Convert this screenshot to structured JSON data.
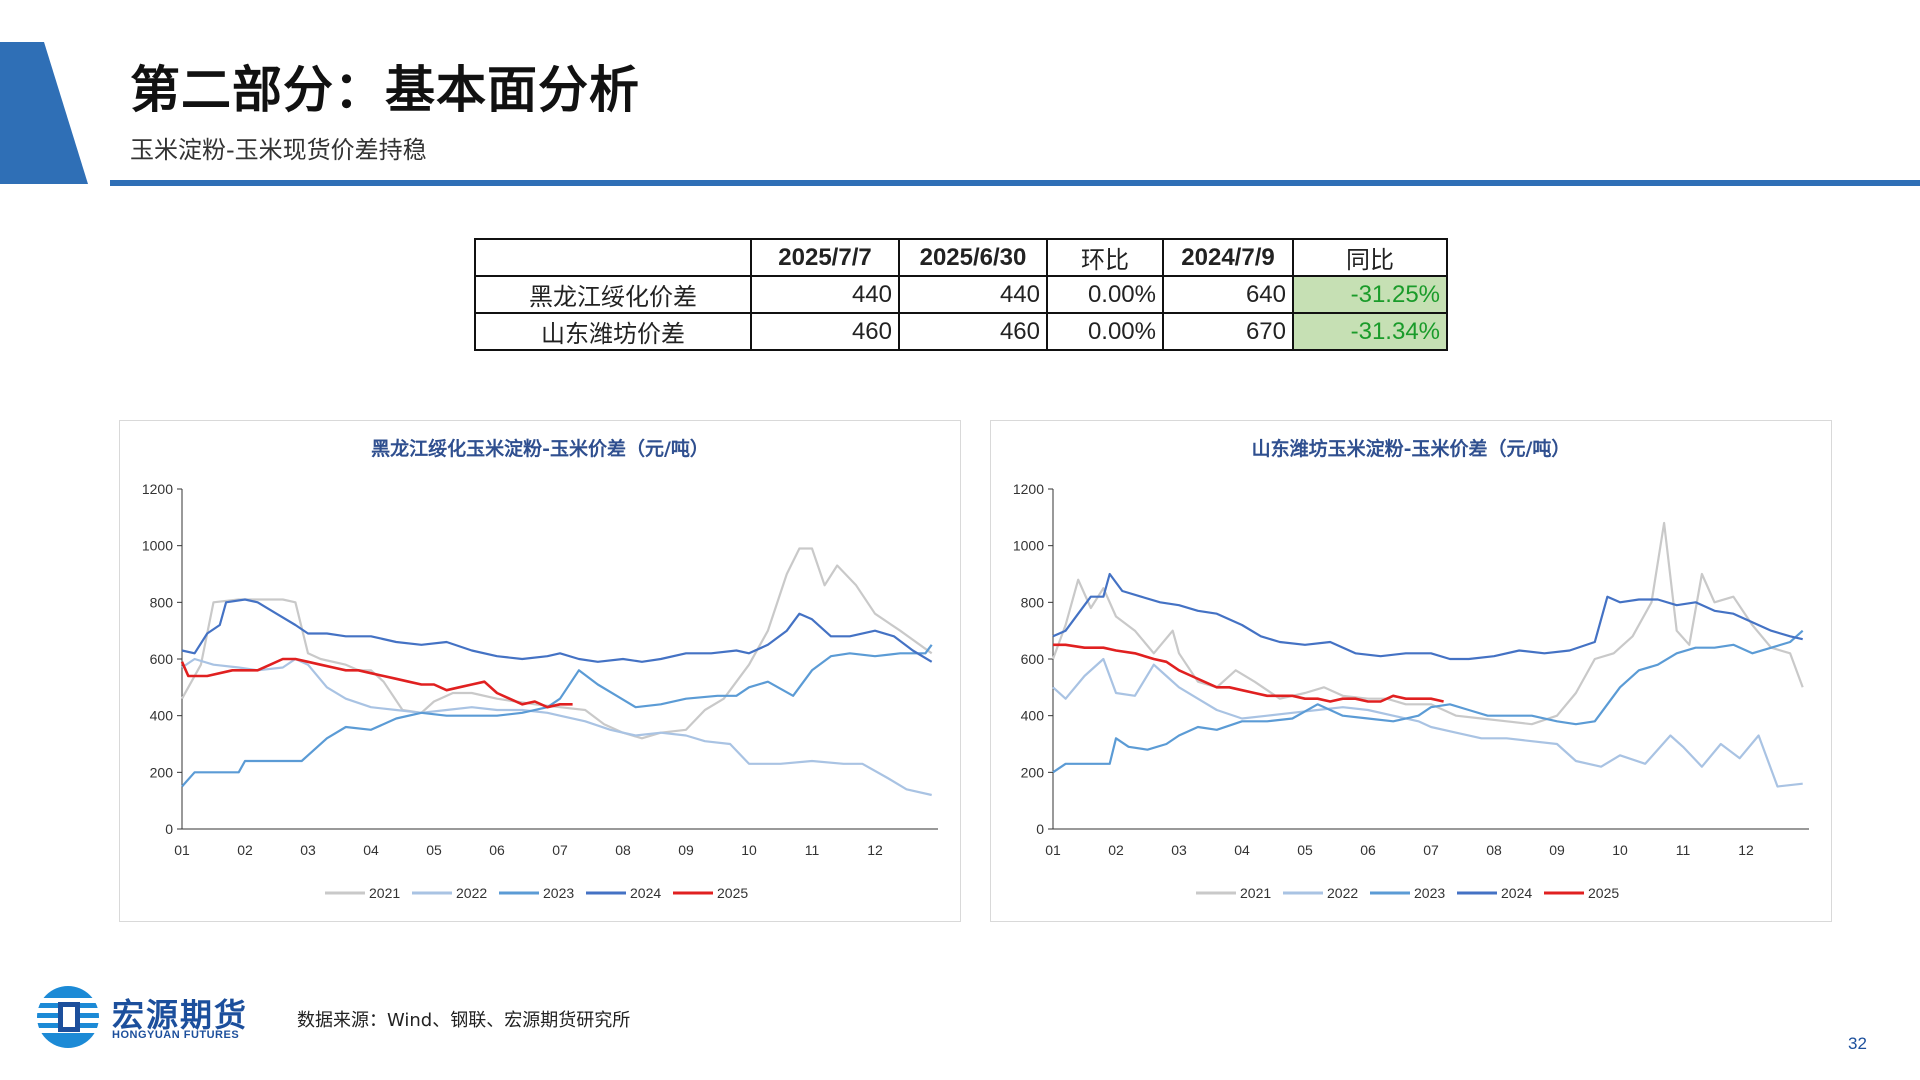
{
  "header": {
    "title": "第二部分：基本面分析",
    "subtitle": "玉米淀粉-玉米现货价差持稳"
  },
  "summary_table": {
    "columns": [
      "",
      "2025/7/7",
      "2025/6/30",
      "环比",
      "2024/7/9",
      "同比"
    ],
    "rows": [
      {
        "name": "黑龙江绥化价差",
        "v1": "440",
        "v2": "440",
        "mom": "0.00%",
        "v3": "640",
        "yoy": "-31.25%"
      },
      {
        "name": "山东潍坊价差",
        "v1": "460",
        "v2": "460",
        "mom": "0.00%",
        "v3": "670",
        "yoy": "-31.34%"
      }
    ]
  },
  "chart_data": [
    {
      "type": "line",
      "title": "黑龙江绥化玉米淀粉-玉米价差（元/吨）",
      "xlabel": "",
      "ylabel": "",
      "ylim": [
        0,
        1200
      ],
      "yticks": [
        "0",
        "200",
        "400",
        "600",
        "800",
        "1000",
        "1200"
      ],
      "xticks": [
        "01",
        "02",
        "03",
        "04",
        "05",
        "06",
        "07",
        "08",
        "09",
        "10",
        "11",
        "12"
      ],
      "legend": "bottom",
      "series": [
        {
          "name": "2021",
          "color": "#c9c9c9",
          "x": [
            1.0,
            1.3,
            1.5,
            1.9,
            2.3,
            2.6,
            2.8,
            3.0,
            3.2,
            3.6,
            3.8,
            4.0,
            4.2,
            4.5,
            4.8,
            5.0,
            5.3,
            5.6,
            6.0,
            6.3,
            6.6,
            7.0,
            7.4,
            7.7,
            8.0,
            8.3,
            8.6,
            9.0,
            9.3,
            9.6,
            10.0,
            10.3,
            10.6,
            10.8,
            11.0,
            11.2,
            11.4,
            11.7,
            12.0,
            12.4,
            12.9
          ],
          "y": [
            460,
            580,
            800,
            810,
            810,
            810,
            800,
            620,
            600,
            580,
            560,
            560,
            520,
            420,
            410,
            450,
            480,
            480,
            460,
            450,
            440,
            430,
            420,
            370,
            340,
            320,
            340,
            350,
            420,
            460,
            580,
            700,
            900,
            990,
            990,
            860,
            930,
            860,
            760,
            700,
            620
          ]
        },
        {
          "name": "2022",
          "color": "#a9c3e3",
          "x": [
            1.0,
            1.2,
            1.5,
            1.9,
            2.2,
            2.6,
            2.8,
            3.0,
            3.3,
            3.6,
            4.0,
            4.4,
            4.8,
            5.2,
            5.6,
            6.0,
            6.4,
            6.8,
            7.0,
            7.4,
            7.8,
            8.2,
            8.6,
            9.0,
            9.3,
            9.7,
            10.0,
            10.5,
            11.0,
            11.5,
            11.8,
            12.2,
            12.5,
            12.9
          ],
          "y": [
            570,
            600,
            580,
            570,
            560,
            570,
            600,
            580,
            500,
            460,
            430,
            420,
            410,
            420,
            430,
            420,
            420,
            410,
            400,
            380,
            350,
            330,
            340,
            330,
            310,
            300,
            230,
            230,
            240,
            230,
            230,
            180,
            140,
            120
          ]
        },
        {
          "name": "2023",
          "color": "#5b9bd5",
          "x": [
            1.0,
            1.2,
            1.5,
            1.9,
            2.0,
            2.3,
            2.6,
            2.9,
            3.0,
            3.3,
            3.6,
            4.0,
            4.4,
            4.8,
            5.2,
            5.6,
            6.0,
            6.4,
            6.8,
            7.0,
            7.3,
            7.6,
            7.9,
            8.2,
            8.6,
            9.0,
            9.5,
            9.8,
            10.0,
            10.3,
            10.7,
            11.0,
            11.3,
            11.6,
            12.0,
            12.4,
            12.8,
            12.9
          ],
          "y": [
            150,
            200,
            200,
            200,
            240,
            240,
            240,
            240,
            260,
            320,
            360,
            350,
            390,
            410,
            400,
            400,
            400,
            410,
            430,
            460,
            560,
            510,
            470,
            430,
            440,
            460,
            470,
            470,
            500,
            520,
            470,
            560,
            610,
            620,
            610,
            620,
            620,
            650
          ]
        },
        {
          "name": "2024",
          "color": "#4472c4",
          "x": [
            1.0,
            1.2,
            1.4,
            1.6,
            1.7,
            2.0,
            2.2,
            2.5,
            2.8,
            3.0,
            3.3,
            3.6,
            4.0,
            4.4,
            4.8,
            5.2,
            5.6,
            6.0,
            6.4,
            6.8,
            7.0,
            7.3,
            7.6,
            8.0,
            8.3,
            8.6,
            9.0,
            9.4,
            9.8,
            10.0,
            10.3,
            10.6,
            10.8,
            11.0,
            11.3,
            11.6,
            12.0,
            12.3,
            12.6,
            12.9
          ],
          "y": [
            630,
            620,
            690,
            720,
            800,
            810,
            800,
            760,
            720,
            690,
            690,
            680,
            680,
            660,
            650,
            660,
            630,
            610,
            600,
            610,
            620,
            600,
            590,
            600,
            590,
            600,
            620,
            620,
            630,
            620,
            650,
            700,
            760,
            740,
            680,
            680,
            700,
            680,
            630,
            590
          ]
        },
        {
          "name": "2025",
          "color": "#e02020",
          "x": [
            1.0,
            1.1,
            1.4,
            1.8,
            2.2,
            2.4,
            2.6,
            2.8,
            3.0,
            3.2,
            3.4,
            3.6,
            3.8,
            4.0,
            4.2,
            4.4,
            4.6,
            4.8,
            5.0,
            5.2,
            5.4,
            5.6,
            5.8,
            6.0,
            6.2,
            6.4,
            6.6,
            6.8,
            7.0,
            7.2
          ],
          "y": [
            590,
            540,
            540,
            560,
            560,
            580,
            600,
            600,
            590,
            580,
            570,
            560,
            560,
            550,
            540,
            530,
            520,
            510,
            510,
            490,
            500,
            510,
            520,
            480,
            460,
            440,
            450,
            430,
            440,
            440
          ]
        }
      ]
    },
    {
      "type": "line",
      "title": "山东潍坊玉米淀粉-玉米价差（元/吨）",
      "xlabel": "",
      "ylabel": "",
      "ylim": [
        0,
        1200
      ],
      "yticks": [
        "0",
        "200",
        "400",
        "600",
        "800",
        "1000",
        "1200"
      ],
      "xticks": [
        "01",
        "02",
        "03",
        "04",
        "05",
        "06",
        "07",
        "08",
        "09",
        "10",
        "11",
        "12"
      ],
      "legend": "bottom",
      "series": [
        {
          "name": "2021",
          "color": "#c9c9c9",
          "x": [
            1.0,
            1.2,
            1.4,
            1.6,
            1.8,
            2.0,
            2.3,
            2.6,
            2.9,
            3.0,
            3.3,
            3.6,
            3.9,
            4.2,
            4.6,
            5.0,
            5.3,
            5.6,
            6.0,
            6.3,
            6.6,
            7.0,
            7.4,
            7.8,
            8.2,
            8.6,
            9.0,
            9.3,
            9.6,
            9.9,
            10.2,
            10.5,
            10.7,
            10.9,
            11.1,
            11.3,
            11.5,
            11.8,
            12.1,
            12.4,
            12.7,
            12.9
          ],
          "y": [
            600,
            720,
            880,
            780,
            850,
            750,
            700,
            620,
            700,
            620,
            520,
            500,
            560,
            520,
            460,
            480,
            500,
            470,
            460,
            460,
            440,
            440,
            400,
            390,
            380,
            370,
            400,
            480,
            600,
            620,
            680,
            800,
            1080,
            700,
            650,
            900,
            800,
            820,
            720,
            640,
            620,
            500
          ]
        },
        {
          "name": "2022",
          "color": "#a9c3e3",
          "x": [
            1.0,
            1.2,
            1.5,
            1.8,
            2.0,
            2.3,
            2.6,
            2.8,
            3.0,
            3.3,
            3.6,
            4.0,
            4.4,
            4.8,
            5.2,
            5.6,
            6.0,
            6.4,
            6.8,
            7.0,
            7.4,
            7.8,
            8.2,
            8.6,
            9.0,
            9.3,
            9.7,
            10.0,
            10.4,
            10.8,
            11.0,
            11.3,
            11.6,
            11.9,
            12.2,
            12.5,
            12.9
          ],
          "y": [
            500,
            460,
            540,
            600,
            480,
            470,
            580,
            540,
            500,
            460,
            420,
            390,
            400,
            410,
            420,
            430,
            420,
            400,
            380,
            360,
            340,
            320,
            320,
            310,
            300,
            240,
            220,
            260,
            230,
            330,
            290,
            220,
            300,
            250,
            330,
            150,
            160
          ]
        },
        {
          "name": "2023",
          "color": "#5b9bd5",
          "x": [
            1.0,
            1.2,
            1.5,
            1.9,
            2.0,
            2.2,
            2.5,
            2.8,
            3.0,
            3.3,
            3.6,
            4.0,
            4.4,
            4.8,
            5.2,
            5.6,
            6.0,
            6.4,
            6.8,
            7.0,
            7.3,
            7.6,
            7.9,
            8.2,
            8.6,
            9.0,
            9.3,
            9.6,
            9.8,
            10.0,
            10.3,
            10.6,
            10.9,
            11.2,
            11.5,
            11.8,
            12.1,
            12.4,
            12.7,
            12.9
          ],
          "y": [
            200,
            230,
            230,
            230,
            320,
            290,
            280,
            300,
            330,
            360,
            350,
            380,
            380,
            390,
            440,
            400,
            390,
            380,
            400,
            430,
            440,
            420,
            400,
            400,
            400,
            380,
            370,
            380,
            440,
            500,
            560,
            580,
            620,
            640,
            640,
            650,
            620,
            640,
            660,
            700
          ]
        },
        {
          "name": "2024",
          "color": "#4472c4",
          "x": [
            1.0,
            1.2,
            1.4,
            1.6,
            1.8,
            1.9,
            2.1,
            2.4,
            2.7,
            3.0,
            3.3,
            3.6,
            4.0,
            4.3,
            4.6,
            5.0,
            5.4,
            5.8,
            6.2,
            6.6,
            7.0,
            7.3,
            7.6,
            8.0,
            8.4,
            8.8,
            9.2,
            9.6,
            9.8,
            10.0,
            10.3,
            10.6,
            10.9,
            11.2,
            11.5,
            11.8,
            12.1,
            12.4,
            12.7,
            12.9
          ],
          "y": [
            680,
            700,
            760,
            820,
            820,
            900,
            840,
            820,
            800,
            790,
            770,
            760,
            720,
            680,
            660,
            650,
            660,
            620,
            610,
            620,
            620,
            600,
            600,
            610,
            630,
            620,
            630,
            660,
            820,
            800,
            810,
            810,
            790,
            800,
            770,
            760,
            730,
            700,
            680,
            670
          ]
        },
        {
          "name": "2025",
          "color": "#e02020",
          "x": [
            1.0,
            1.2,
            1.5,
            1.8,
            2.0,
            2.3,
            2.6,
            2.8,
            3.0,
            3.2,
            3.4,
            3.6,
            3.8,
            4.0,
            4.2,
            4.4,
            4.6,
            4.8,
            5.0,
            5.2,
            5.4,
            5.6,
            5.8,
            6.0,
            6.2,
            6.4,
            6.6,
            6.8,
            7.0,
            7.2
          ],
          "y": [
            650,
            650,
            640,
            640,
            630,
            620,
            600,
            590,
            560,
            540,
            520,
            500,
            500,
            490,
            480,
            470,
            470,
            470,
            460,
            460,
            450,
            460,
            460,
            450,
            450,
            470,
            460,
            460,
            460,
            450
          ]
        }
      ]
    }
  ],
  "footer": {
    "source": "数据来源：Wind、钢联、宏源期货研究所",
    "logo_cn": "宏源期货",
    "logo_en": "HONGYUAN FUTURES",
    "page_number": "32"
  }
}
